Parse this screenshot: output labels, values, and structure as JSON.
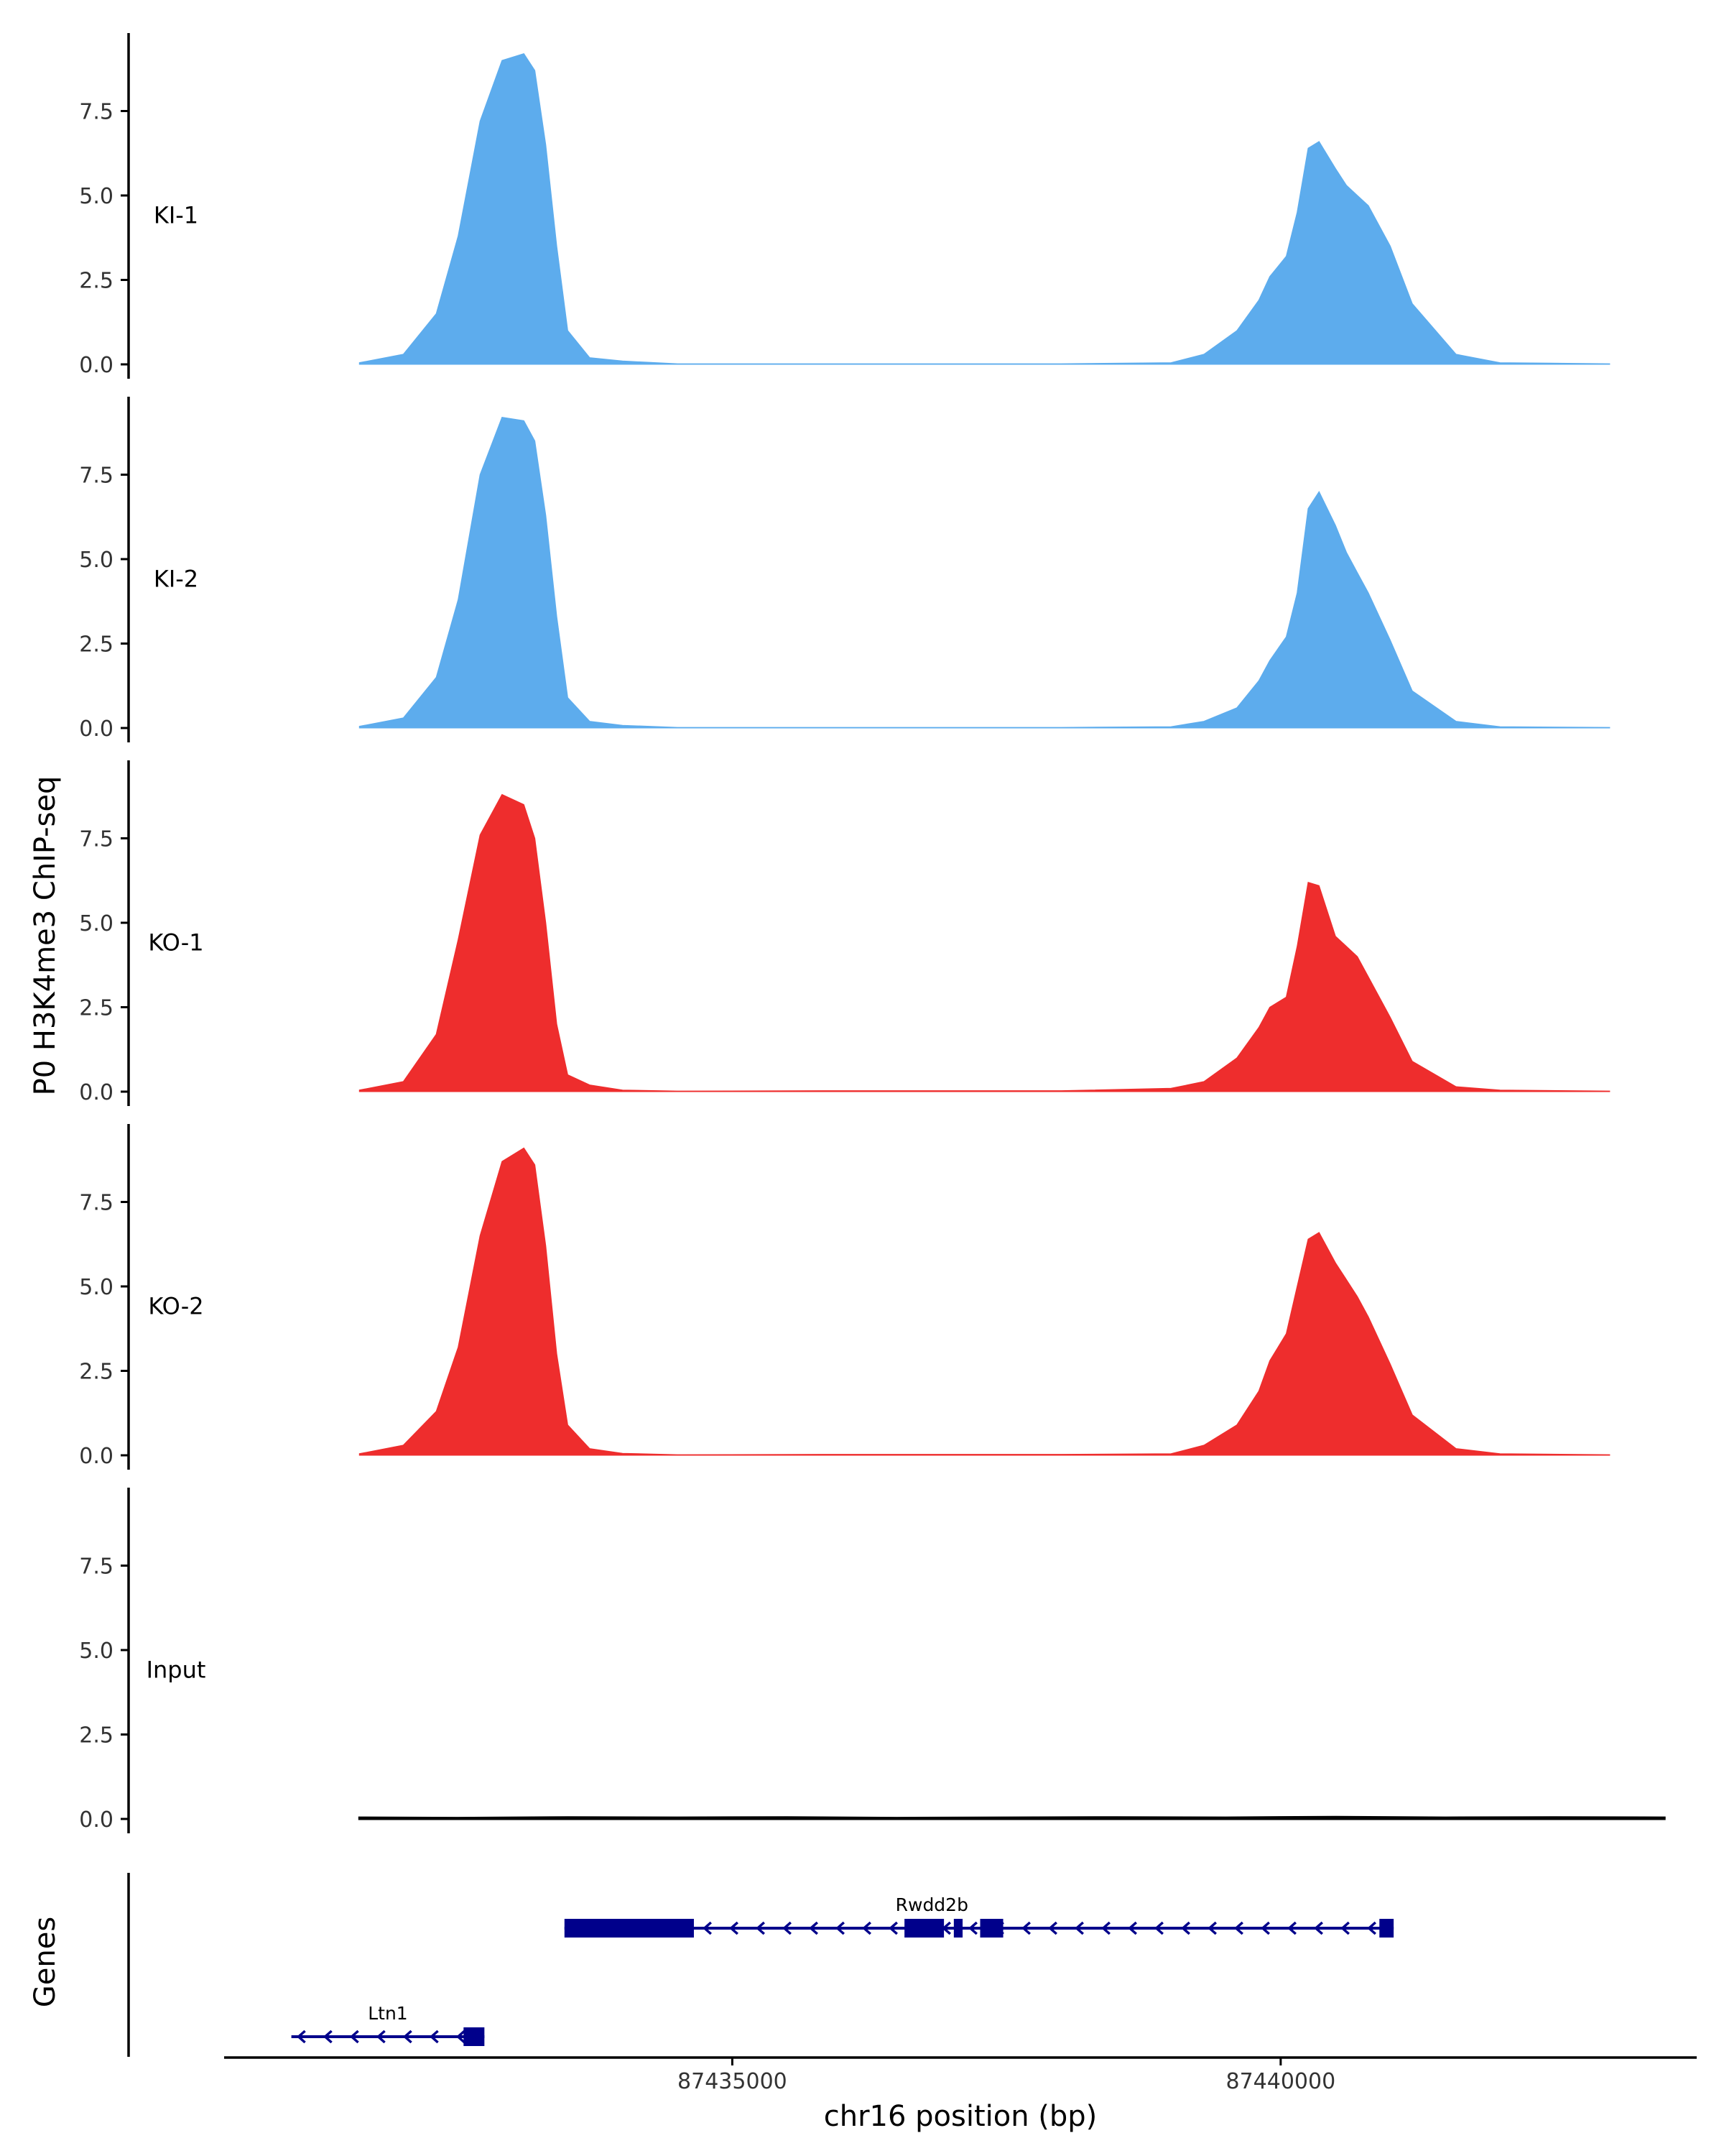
{
  "chart_data": {
    "type": "area",
    "ylabel": "P0 H3K4me3 ChIP-seq",
    "xlabel": "chr16 position (bp)",
    "xlim": [
      87430380,
      87443780
    ],
    "x_tick_values": [
      87435000,
      87440000
    ],
    "x_tick_labels": [
      "87435000",
      "87440000"
    ],
    "ylim": [
      0,
      9.6
    ],
    "y_tick_values": [
      0,
      2.5,
      5,
      7.5
    ],
    "y_tick_labels": [
      "0.0",
      "2.5",
      "5.0",
      "7.5"
    ],
    "grid": false,
    "legend": "none",
    "colors": {
      "KI": "#5daced",
      "KO": "#ee2d2d",
      "Input": "#000000",
      "genes": "#00008b",
      "axis": "#000000"
    },
    "series": [
      {
        "name": "KI-1",
        "color": "#5daced",
        "x": [
          87431600,
          87432000,
          87432300,
          87432500,
          87432700,
          87432900,
          87433100,
          87433200,
          87433300,
          87433400,
          87433500,
          87433700,
          87434000,
          87434500,
          87436000,
          87437000,
          87438000,
          87439000,
          87439300,
          87439600,
          87439800,
          87439900,
          87440050,
          87440150,
          87440250,
          87440350,
          87440500,
          87440600,
          87440700,
          87440800,
          87441000,
          87441200,
          87441600,
          87442000,
          87443000
        ],
        "y": [
          0.05,
          0.3,
          1.5,
          3.8,
          7.2,
          9.0,
          9.2,
          8.7,
          6.5,
          3.5,
          1.0,
          0.2,
          0.1,
          0.02,
          0.02,
          0.02,
          0.02,
          0.05,
          0.3,
          1.0,
          1.9,
          2.6,
          3.2,
          4.5,
          6.4,
          6.6,
          5.8,
          5.3,
          5.0,
          4.7,
          3.5,
          1.8,
          0.3,
          0.05,
          0.02
        ]
      },
      {
        "name": "KI-2",
        "color": "#5daced",
        "x": [
          87431600,
          87432000,
          87432300,
          87432500,
          87432700,
          87432900,
          87433100,
          87433200,
          87433300,
          87433400,
          87433500,
          87433700,
          87434000,
          87434500,
          87436000,
          87437000,
          87438000,
          87439000,
          87439300,
          87439600,
          87439800,
          87439900,
          87440050,
          87440150,
          87440250,
          87440350,
          87440500,
          87440600,
          87440700,
          87440800,
          87441000,
          87441200,
          87441600,
          87442000,
          87443000
        ],
        "y": [
          0.05,
          0.3,
          1.5,
          3.8,
          7.5,
          9.2,
          9.1,
          8.5,
          6.3,
          3.3,
          0.9,
          0.2,
          0.08,
          0.02,
          0.02,
          0.02,
          0.02,
          0.04,
          0.2,
          0.6,
          1.4,
          2.0,
          2.7,
          4.0,
          6.5,
          7.0,
          6.0,
          5.2,
          4.6,
          4.0,
          2.6,
          1.1,
          0.2,
          0.04,
          0.02
        ]
      },
      {
        "name": "KO-1",
        "color": "#ee2d2d",
        "x": [
          87431600,
          87432000,
          87432300,
          87432500,
          87432700,
          87432900,
          87433100,
          87433200,
          87433300,
          87433400,
          87433500,
          87433700,
          87434000,
          87434500,
          87436000,
          87437000,
          87438000,
          87439000,
          87439300,
          87439600,
          87439800,
          87439900,
          87440050,
          87440150,
          87440250,
          87440350,
          87440500,
          87440600,
          87440700,
          87440800,
          87441000,
          87441200,
          87441600,
          87442000,
          87443000
        ],
        "y": [
          0.05,
          0.3,
          1.7,
          4.5,
          7.6,
          8.8,
          8.5,
          7.5,
          5.0,
          2.0,
          0.5,
          0.2,
          0.05,
          0.02,
          0.03,
          0.03,
          0.03,
          0.1,
          0.3,
          1.0,
          1.9,
          2.5,
          2.8,
          4.3,
          6.2,
          6.1,
          4.6,
          4.3,
          4.0,
          3.4,
          2.2,
          0.9,
          0.15,
          0.05,
          0.02
        ]
      },
      {
        "name": "KO-2",
        "color": "#ee2d2d",
        "x": [
          87431600,
          87432000,
          87432300,
          87432500,
          87432700,
          87432900,
          87433100,
          87433200,
          87433300,
          87433400,
          87433500,
          87433700,
          87434000,
          87434500,
          87436000,
          87437000,
          87438000,
          87439000,
          87439300,
          87439600,
          87439800,
          87439900,
          87440050,
          87440150,
          87440250,
          87440350,
          87440500,
          87440600,
          87440700,
          87440800,
          87441000,
          87441200,
          87441600,
          87442000,
          87443000
        ],
        "y": [
          0.05,
          0.3,
          1.3,
          3.2,
          6.5,
          8.7,
          9.1,
          8.6,
          6.2,
          3.0,
          0.9,
          0.2,
          0.06,
          0.02,
          0.03,
          0.03,
          0.03,
          0.05,
          0.3,
          0.9,
          1.9,
          2.8,
          3.6,
          5.0,
          6.4,
          6.6,
          5.7,
          5.2,
          4.7,
          4.1,
          2.7,
          1.2,
          0.2,
          0.05,
          0.02
        ]
      },
      {
        "name": "Input",
        "color": "#000000",
        "x": [
          87431600,
          87432500,
          87433500,
          87434500,
          87435500,
          87436500,
          87437500,
          87438500,
          87439500,
          87440500,
          87441500,
          87442500,
          87443500
        ],
        "y": [
          0.04,
          0.03,
          0.05,
          0.04,
          0.05,
          0.03,
          0.04,
          0.05,
          0.04,
          0.06,
          0.04,
          0.05,
          0.04
        ]
      }
    ],
    "genes_label": "Genes",
    "genes": [
      {
        "name": "Rwdd2b",
        "strand": "-",
        "start": 87433470,
        "end": 87441030,
        "exons": [
          [
            87433470,
            87434650
          ],
          [
            87436570,
            87436930
          ],
          [
            87437020,
            87437100
          ],
          [
            87437260,
            87437470
          ],
          [
            87440900,
            87441030
          ]
        ]
      },
      {
        "name": "Ltn1",
        "strand": "-",
        "start": 87430980,
        "end": 87432740,
        "exons": [
          [
            87432550,
            87432740
          ]
        ]
      }
    ]
  }
}
